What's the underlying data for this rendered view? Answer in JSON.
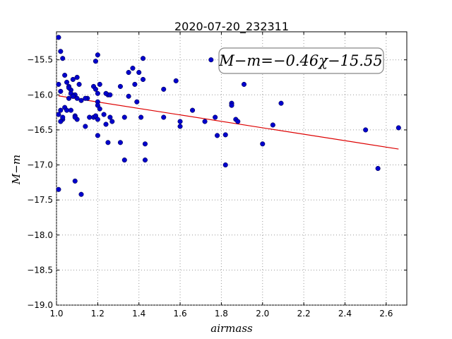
{
  "chart_data": {
    "type": "scatter",
    "title": "2020-07-20_232311",
    "xlabel": "airmass",
    "ylabel": "M−m",
    "annotation": "M−m=−0.46χ−15.55",
    "xlim": [
      1.0,
      2.7
    ],
    "ylim": [
      -19.0,
      -15.1
    ],
    "x_ticks": [
      "1.0",
      "1.2",
      "1.4",
      "1.6",
      "1.8",
      "2.0",
      "2.2",
      "2.4",
      "2.6"
    ],
    "y_ticks": [
      "−15.5",
      "−16.0",
      "−16.5",
      "−17.0",
      "−17.5",
      "−18.0",
      "−18.5",
      "−19.0"
    ],
    "grid": true,
    "points": {
      "x": [
        1.01,
        1.02,
        1.03,
        1.02,
        1.01,
        1.04,
        1.05,
        1.06,
        1.07,
        1.08,
        1.09,
        1.1,
        1.06,
        1.07,
        1.08,
        1.09,
        1.1,
        1.11,
        1.12,
        1.02,
        1.03,
        1.04,
        1.05,
        1.06,
        1.01,
        1.02,
        1.03,
        1.08,
        1.09,
        1.1,
        1.07,
        1.01,
        1.09,
        1.12,
        1.14,
        1.16,
        1.18,
        1.19,
        1.2,
        1.21,
        1.19,
        1.2,
        1.2,
        1.2,
        1.2,
        1.18,
        1.19,
        1.23,
        1.24,
        1.25,
        1.26,
        1.27,
        1.26,
        1.25,
        1.2,
        1.24,
        1.31,
        1.31,
        1.33,
        1.33,
        1.35,
        1.37,
        1.35,
        1.38,
        1.39,
        1.4,
        1.41,
        1.42,
        1.42,
        1.43,
        1.43,
        1.52,
        1.52,
        1.58,
        1.6,
        1.6,
        1.66,
        1.72,
        1.75,
        1.77,
        1.78,
        1.82,
        1.82,
        1.85,
        1.85,
        1.87,
        1.88,
        1.91,
        2.0,
        2.05,
        2.09,
        2.5,
        2.56,
        2.66,
        1.15,
        1.21,
        1.14
      ],
      "y": [
        -15.18,
        -15.38,
        -15.48,
        -15.95,
        -15.85,
        -15.72,
        -15.82,
        -15.88,
        -15.93,
        -15.78,
        -16.0,
        -15.75,
        -15.9,
        -15.98,
        -16.02,
        -16.3,
        -16.35,
        -15.85,
        -16.08,
        -16.22,
        -16.35,
        -16.18,
        -16.22,
        -16.05,
        -16.28,
        -16.38,
        -16.32,
        -16.02,
        -16.32,
        -16.05,
        -16.22,
        -17.35,
        -17.23,
        -17.42,
        -16.45,
        -16.32,
        -15.88,
        -15.52,
        -15.43,
        -15.85,
        -15.92,
        -15.98,
        -16.1,
        -16.15,
        -16.58,
        -16.32,
        -16.3,
        -16.28,
        -16.42,
        -16.0,
        -16.0,
        -16.38,
        -16.32,
        -16.68,
        -16.35,
        -15.98,
        -15.88,
        -16.68,
        -16.32,
        -16.93,
        -15.68,
        -15.62,
        -16.02,
        -15.85,
        -16.1,
        -15.68,
        -16.32,
        -15.48,
        -15.78,
        -16.7,
        -16.93,
        -15.92,
        -16.32,
        -15.8,
        -16.38,
        -16.45,
        -16.22,
        -16.38,
        -15.5,
        -16.32,
        -16.58,
        -16.57,
        -17.0,
        -16.12,
        -16.15,
        -16.35,
        -16.38,
        -15.85,
        -16.7,
        -16.43,
        -16.12,
        -16.5,
        -17.05,
        -16.47,
        -16.05,
        -16.2,
        -16.05
      ]
    },
    "fit_line": {
      "slope": -0.46,
      "intercept": -15.55,
      "x_range": [
        1.01,
        2.66
      ]
    },
    "colors": {
      "points": "#0000cc",
      "fit": "#dd0000",
      "grid": "#999999"
    }
  }
}
